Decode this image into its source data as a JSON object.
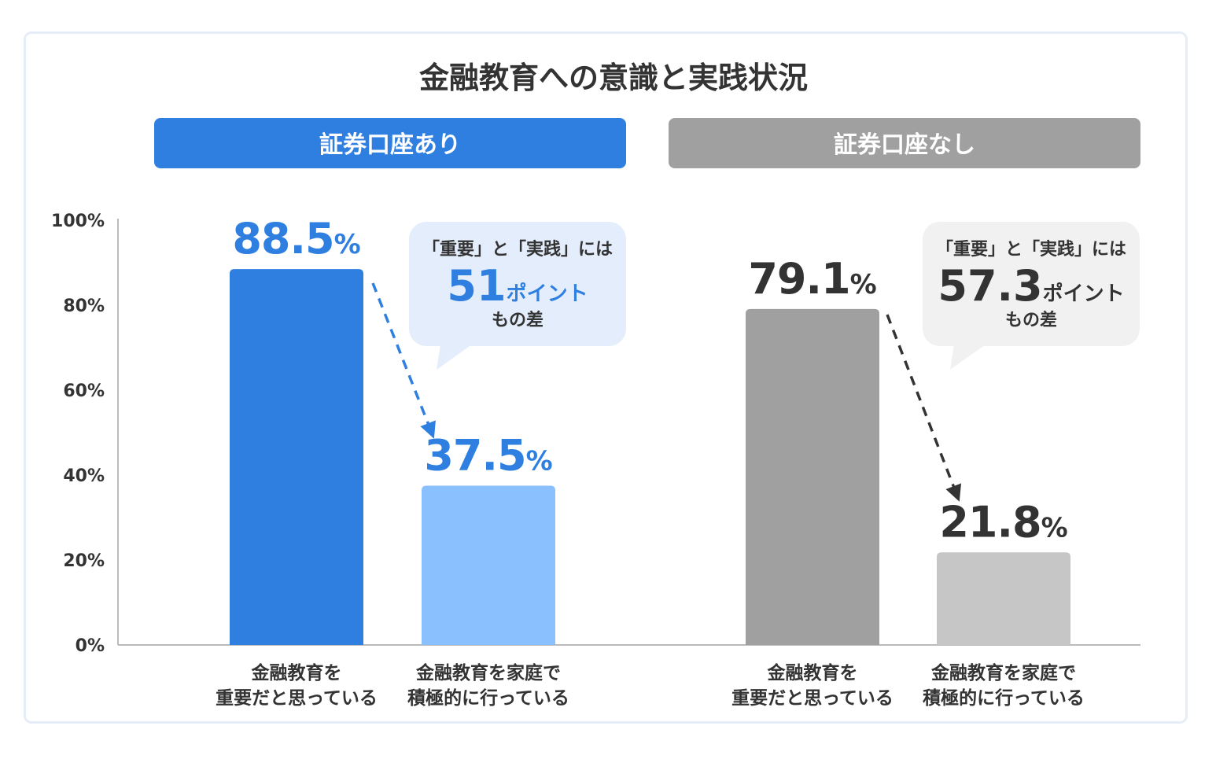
{
  "title": "金融教育への意識と実践状況",
  "colors": {
    "blue_dark": "#2f7fe1",
    "blue_light": "#8ac0fd",
    "gray_dark": "#a0a0a0",
    "gray_light": "#c6c6c6",
    "text_dark": "#333333",
    "callout_blue_bg": "#e3edfb",
    "callout_gray_bg": "#f1f1f1"
  },
  "y_ticks": [
    "0%",
    "20%",
    "40%",
    "60%",
    "80%",
    "100%"
  ],
  "chart_data": {
    "type": "bar",
    "title": "金融教育への意識と実践状況",
    "ylim": [
      0,
      100
    ],
    "y_unit": "%",
    "grid": false,
    "panels": [
      {
        "group": "証券口座あり",
        "categories": [
          "金融教育を\n重要だと思っている",
          "金融教育を家庭で\n積極的に行っている"
        ],
        "category_lines": [
          [
            "金融教育を",
            "重要だと思っている"
          ],
          [
            "金融教育を家庭で",
            "積極的に行っている"
          ]
        ],
        "values": [
          88.5,
          37.5
        ],
        "value_labels": [
          "88.5",
          "37.5"
        ],
        "callout": {
          "line1": "「重要」と「実践」には",
          "value": "51",
          "unit": "ポイント",
          "line3": "もの差"
        }
      },
      {
        "group": "証券口座なし",
        "categories": [
          "金融教育を\n重要だと思っている",
          "金融教育を家庭で\n積極的に行っている"
        ],
        "category_lines": [
          [
            "金融教育を",
            "重要だと思っている"
          ],
          [
            "金融教育を家庭で",
            "積極的に行っている"
          ]
        ],
        "values": [
          79.1,
          21.8
        ],
        "value_labels": [
          "79.1",
          "21.8"
        ],
        "callout": {
          "line1": "「重要」と「実践」には",
          "value": "57.3",
          "unit": "ポイント",
          "line3": "もの差"
        }
      }
    ]
  }
}
